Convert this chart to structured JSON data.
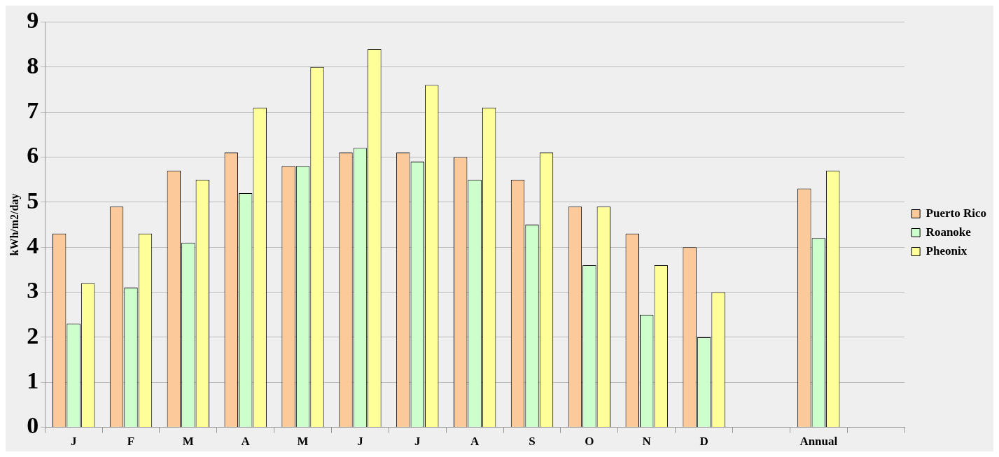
{
  "chart_data": {
    "type": "bar",
    "ylabel": "kWh/m2/day",
    "categories": [
      "J",
      "F",
      "M",
      "A",
      "M",
      "J",
      "J",
      "A",
      "S",
      "O",
      "N",
      "D",
      null,
      "Annual",
      null
    ],
    "series": [
      {
        "name": "Puerto Rico",
        "color": "#fcc99b",
        "values": [
          4.3,
          4.9,
          5.7,
          6.1,
          5.8,
          6.1,
          6.1,
          6.0,
          5.5,
          4.9,
          4.3,
          4.0,
          null,
          5.3,
          null
        ]
      },
      {
        "name": "Roanoke",
        "color": "#ccffcc",
        "values": [
          2.3,
          3.1,
          4.1,
          5.2,
          5.8,
          6.2,
          5.9,
          5.5,
          4.5,
          3.6,
          2.5,
          2.0,
          null,
          4.2,
          null
        ]
      },
      {
        "name": "Pheonix",
        "color": "#ffff99",
        "values": [
          3.2,
          4.3,
          5.5,
          7.1,
          8.0,
          8.4,
          7.6,
          7.1,
          6.1,
          4.9,
          3.6,
          3.0,
          null,
          5.7,
          null
        ]
      }
    ],
    "ylim": [
      0,
      9
    ],
    "yticks": [
      0,
      1,
      2,
      3,
      4,
      5,
      6,
      7,
      8,
      9
    ],
    "grid": "y",
    "legend": "right"
  }
}
